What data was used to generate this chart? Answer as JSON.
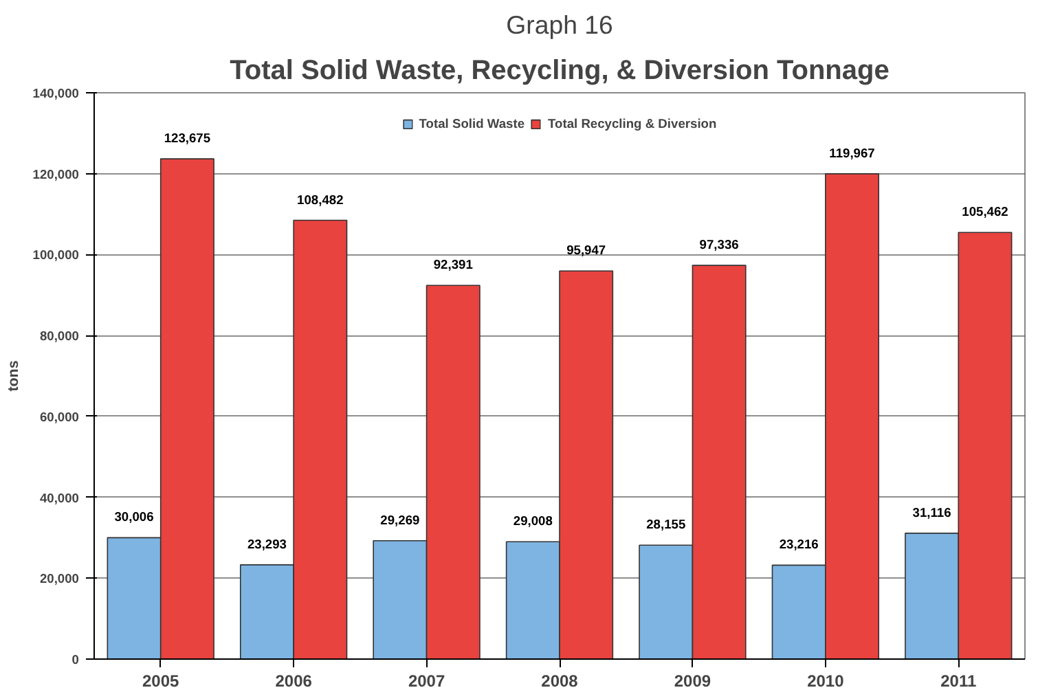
{
  "chart_data": {
    "type": "bar",
    "title": "Graph 16",
    "subtitle": "Total Solid Waste, Recycling, & Diversion Tonnage",
    "ylabel": "tons",
    "categories": [
      "2005",
      "2006",
      "2007",
      "2008",
      "2009",
      "2010",
      "2011"
    ],
    "series": [
      {
        "name": "Total Solid Waste",
        "color": "#7eb4e2",
        "values": [
          30006,
          23293,
          29269,
          29008,
          28155,
          23216,
          31116
        ],
        "value_labels": [
          "30,006",
          "23,293",
          "29,269",
          "29,008",
          "28,155",
          "23,216",
          "31,116"
        ]
      },
      {
        "name": "Total Recycling & Diversion",
        "color": "#e8433f",
        "values": [
          123675,
          108482,
          92391,
          95947,
          97336,
          119967,
          105462
        ],
        "value_labels": [
          "123,675",
          "108,482",
          "92,391",
          "95,947",
          "97,336",
          "119,967",
          "105,462"
        ]
      }
    ],
    "ylim": [
      0,
      140000
    ],
    "yticks": [
      {
        "value": 0,
        "label": "0"
      },
      {
        "value": 20000,
        "label": "20,000"
      },
      {
        "value": 40000,
        "label": "40,000"
      },
      {
        "value": 60000,
        "label": "60,000"
      },
      {
        "value": 80000,
        "label": "80,000"
      },
      {
        "value": 100000,
        "label": "100,000"
      },
      {
        "value": 120000,
        "label": "120,000"
      },
      {
        "value": 140000,
        "label": "140,000"
      }
    ],
    "grid": "y",
    "legend": "top"
  }
}
